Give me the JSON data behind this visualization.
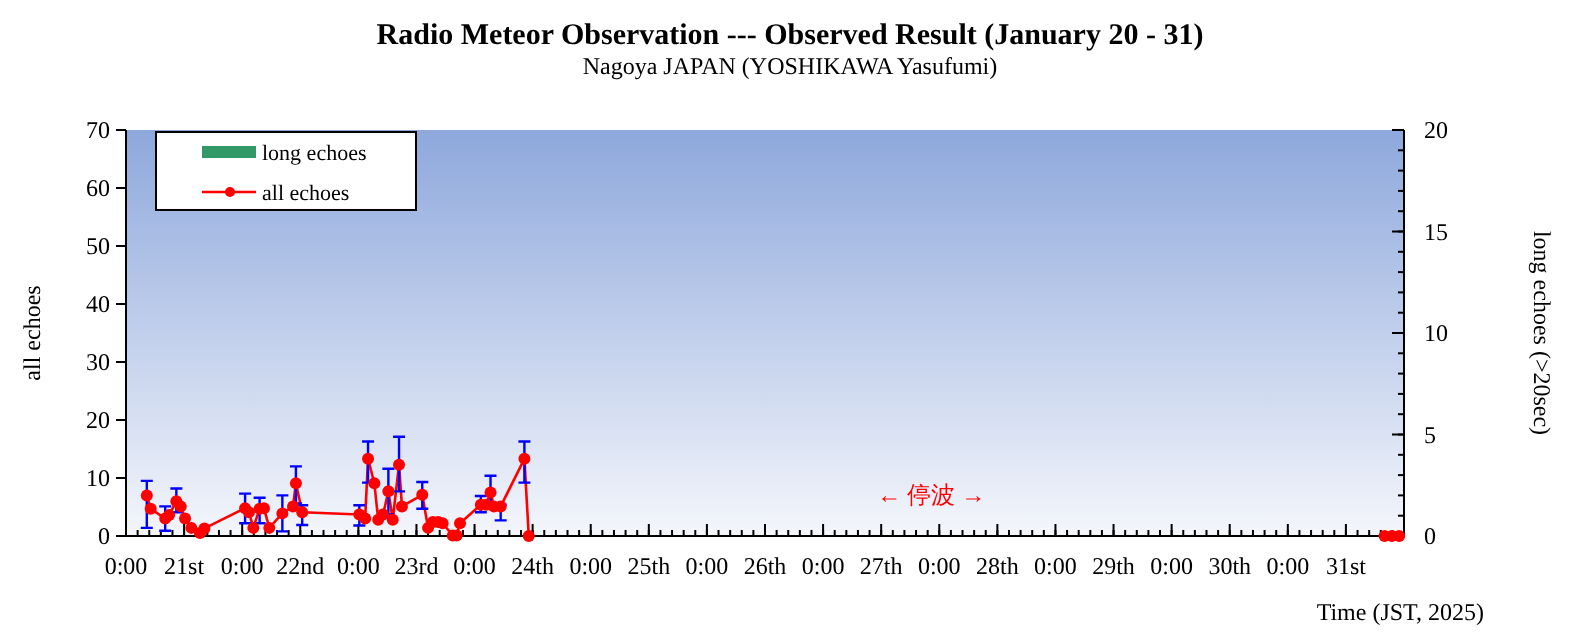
{
  "chart_data": {
    "type": "line",
    "title": "Radio Meteor Observation  ---  Observed Result (January  20 - 31)",
    "subtitle": "Nagoya JAPAN (YOSHIKAWA Yasufumi)",
    "xlabel": "Time (JST, 2025)",
    "ylabel": "all echoes",
    "y2label": "long echoes (>20sec)",
    "xlim": [
      "2025-01-21T00:00",
      "2025-02-01T00:00"
    ],
    "ylim": [
      0,
      70
    ],
    "y2lim": [
      0,
      20
    ],
    "xticks": [
      {
        "value": "2025-01-21T00:00",
        "label": "0:00"
      },
      {
        "value": "2025-01-21T12:00",
        "label": "21st"
      },
      {
        "value": "2025-01-22T00:00",
        "label": "0:00"
      },
      {
        "value": "2025-01-22T12:00",
        "label": "22nd"
      },
      {
        "value": "2025-01-23T00:00",
        "label": "0:00"
      },
      {
        "value": "2025-01-23T12:00",
        "label": "23rd"
      },
      {
        "value": "2025-01-24T00:00",
        "label": "0:00"
      },
      {
        "value": "2025-01-24T12:00",
        "label": "24th"
      },
      {
        "value": "2025-01-25T00:00",
        "label": "0:00"
      },
      {
        "value": "2025-01-25T12:00",
        "label": "25th"
      },
      {
        "value": "2025-01-26T00:00",
        "label": "0:00"
      },
      {
        "value": "2025-01-26T12:00",
        "label": "26th"
      },
      {
        "value": "2025-01-27T00:00",
        "label": "0:00"
      },
      {
        "value": "2025-01-27T12:00",
        "label": "27th"
      },
      {
        "value": "2025-01-28T00:00",
        "label": "0:00"
      },
      {
        "value": "2025-01-28T12:00",
        "label": "28th"
      },
      {
        "value": "2025-01-29T00:00",
        "label": "0:00"
      },
      {
        "value": "2025-01-29T12:00",
        "label": "29th"
      },
      {
        "value": "2025-01-30T00:00",
        "label": "0:00"
      },
      {
        "value": "2025-01-30T12:00",
        "label": "30th"
      },
      {
        "value": "2025-01-31T00:00",
        "label": "0:00"
      },
      {
        "value": "2025-01-31T12:00",
        "label": "31st"
      }
    ],
    "yticks": [
      0,
      10,
      20,
      30,
      40,
      50,
      60,
      70
    ],
    "y2ticks": [
      0,
      5,
      10,
      15,
      20
    ],
    "legend": "top left",
    "grid": false,
    "marker": "circle",
    "line_style": "solid",
    "annotations": [
      "← 停波 →"
    ],
    "series": [
      {
        "name": "long echoes",
        "type": "bar",
        "color": "#339966"
      },
      {
        "name": "all echoes",
        "color": "#ff0000",
        "x": [
          "2025-01-21T04:18",
          "2025-01-21T05:06",
          "2025-01-21T08:06",
          "2025-01-21T08:54",
          "2025-01-21T10:24",
          "2025-01-21T11:18",
          "2025-01-21T12:12",
          "2025-01-21T13:30",
          "2025-01-21T15:18",
          "2025-01-21T16:12",
          "2025-01-22T00:36",
          "2025-01-22T01:24",
          "2025-01-22T02:18",
          "2025-01-22T03:36",
          "2025-01-22T04:30",
          "2025-01-22T05:36",
          "2025-01-22T08:18",
          "2025-01-22T10:30",
          "2025-01-22T11:06",
          "2025-01-22T12:24",
          "2025-01-23T00:12",
          "2025-01-23T01:24",
          "2025-01-23T02:00",
          "2025-01-23T03:18",
          "2025-01-23T04:06",
          "2025-01-23T05:06",
          "2025-01-23T06:12",
          "2025-01-23T07:06",
          "2025-01-23T08:24",
          "2025-01-23T09:00",
          "2025-01-23T13:12",
          "2025-01-23T14:24",
          "2025-01-23T15:24",
          "2025-01-23T16:30",
          "2025-01-23T17:24",
          "2025-01-23T19:30",
          "2025-01-23T20:18",
          "2025-01-23T21:00",
          "2025-01-24T01:18",
          "2025-01-24T02:24",
          "2025-01-24T03:18",
          "2025-01-24T04:00",
          "2025-01-24T05:24",
          "2025-01-24T10:18",
          "2025-01-24T11:12"
        ],
        "values": [
          7.0,
          4.7,
          3.0,
          3.6,
          6.0,
          5.1,
          3.0,
          1.4,
          0.5,
          1.3,
          4.8,
          4.1,
          1.4,
          4.7,
          4.8,
          1.4,
          3.9,
          5.1,
          9.1,
          4.1,
          3.7,
          3.0,
          13.3,
          9.1,
          2.8,
          3.7,
          7.7,
          2.8,
          12.3,
          5.1,
          7.1,
          1.4,
          2.4,
          2.4,
          2.2,
          0.1,
          0.1,
          2.2,
          5.4,
          5.4,
          7.5,
          5.1,
          5.1,
          13.3,
          0
        ],
        "errors": [
          [
            1.4,
            9.5
          ],
          null,
          [
            0.9,
            5.1
          ],
          null,
          [
            4.1,
            8.2
          ],
          null,
          null,
          null,
          null,
          null,
          [
            2.2,
            7.3
          ],
          null,
          null,
          [
            2.2,
            6.6
          ],
          null,
          null,
          [
            0.8,
            7.0
          ],
          null,
          [
            5.6,
            12.0
          ],
          [
            1.9,
            5.3
          ],
          [
            1.8,
            5.3
          ],
          null,
          [
            9.2,
            16.3
          ],
          null,
          null,
          null,
          [
            3.7,
            11.6
          ],
          null,
          [
            7.7,
            17.1
          ],
          null,
          [
            4.7,
            9.3
          ],
          null,
          null,
          null,
          null,
          null,
          null,
          null,
          [
            4.1,
            6.9
          ],
          null,
          [
            4.7,
            10.4
          ],
          null,
          [
            2.7,
            5.4
          ],
          [
            9.2,
            16.3
          ],
          null
        ]
      },
      {
        "type": "scatter",
        "color": "#ff0000",
        "x": [
          "2025-01-31T20:00",
          "2025-01-31T21:30",
          "2025-01-31T23:00"
        ],
        "values": [
          0,
          0,
          0
        ]
      }
    ]
  }
}
